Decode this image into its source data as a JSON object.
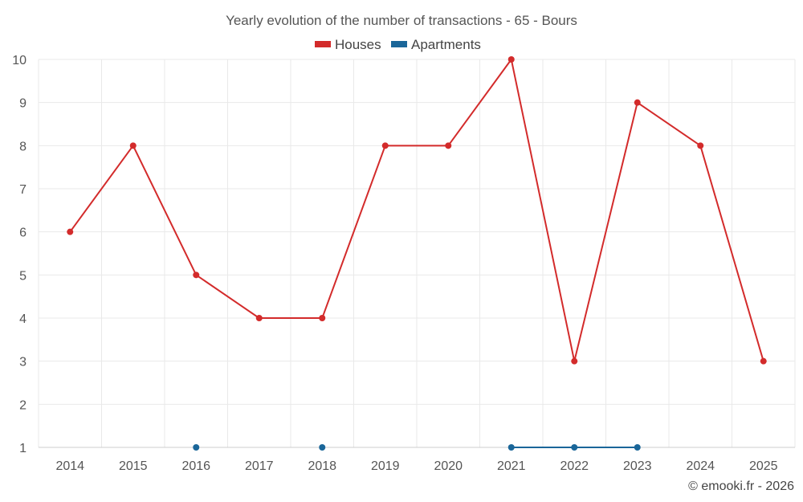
{
  "chart_data": {
    "type": "line",
    "title": "Yearly evolution of the number of transactions - 65 - Bours",
    "categories": [
      "2014",
      "2015",
      "2016",
      "2017",
      "2018",
      "2019",
      "2020",
      "2021",
      "2022",
      "2023",
      "2024",
      "2025"
    ],
    "ylim": [
      1,
      10
    ],
    "yticks": [
      1,
      2,
      3,
      4,
      5,
      6,
      7,
      8,
      9,
      10
    ],
    "grid": true,
    "legend_position": "top-center",
    "series": [
      {
        "name": "Houses",
        "color": "#d32b2b",
        "values": [
          6,
          8,
          5,
          4,
          4,
          8,
          8,
          10,
          3,
          9,
          8,
          3
        ]
      },
      {
        "name": "Apartments",
        "color": "#1a6699",
        "values": [
          null,
          null,
          1,
          null,
          1,
          null,
          null,
          1,
          1,
          1,
          null,
          null
        ]
      }
    ],
    "credit": "© emooki.fr - 2026"
  }
}
